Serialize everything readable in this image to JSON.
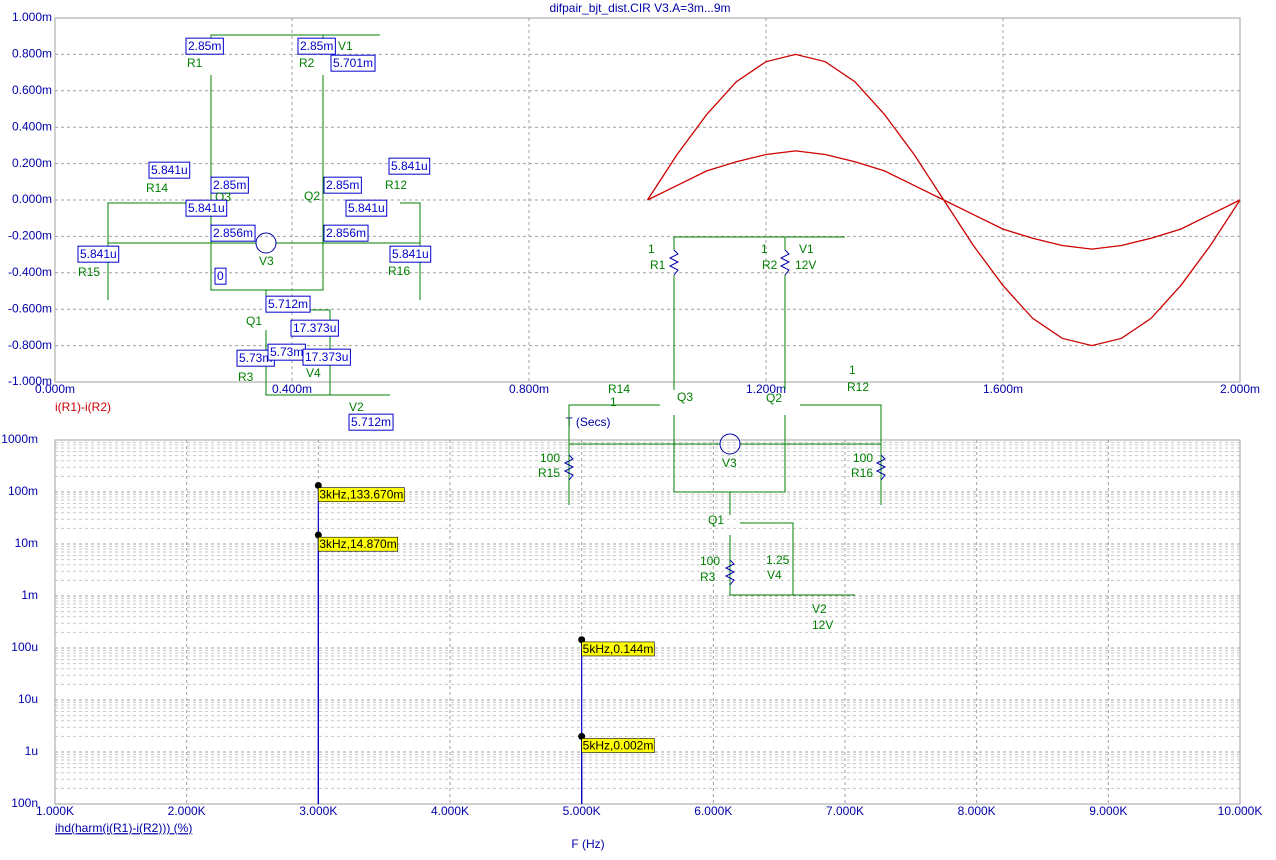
{
  "chart_data": [
    {
      "type": "line",
      "title": "difpair_bjt_dist.CIR V3.A=3m...9m",
      "xlabel": "T (Secs)",
      "ylabel": "i(R1)-i(R2)",
      "x": [
        1.0,
        1.05,
        1.1,
        1.15,
        1.2,
        1.25,
        1.3,
        1.35,
        1.4,
        1.45,
        1.5,
        1.55,
        1.6,
        1.65,
        1.7,
        1.75,
        1.8,
        1.85,
        1.9,
        1.95,
        2.0
      ],
      "series": [
        {
          "color": "#cc0000",
          "values": [
            0,
            0.25,
            0.47,
            0.65,
            0.76,
            0.8,
            0.76,
            0.65,
            0.47,
            0.25,
            0,
            -0.25,
            -0.47,
            -0.65,
            -0.76,
            -0.8,
            -0.76,
            -0.65,
            -0.47,
            -0.25,
            0
          ]
        },
        {
          "color": "#cc0000",
          "values": [
            0,
            0.08,
            0.16,
            0.21,
            0.25,
            0.27,
            0.25,
            0.21,
            0.16,
            0.08,
            0,
            -0.08,
            -0.16,
            -0.21,
            -0.25,
            -0.27,
            -0.25,
            -0.21,
            -0.16,
            -0.08,
            0
          ]
        }
      ],
      "xlim": [
        0,
        2
      ],
      "ylim": [
        -1,
        1
      ],
      "xticks": [
        {
          "value": 0,
          "label": "0.000m"
        },
        {
          "value": 0.4,
          "label": "0.400m"
        },
        {
          "value": 0.8,
          "label": "0.800m"
        },
        {
          "value": 1.2,
          "label": "1.200m"
        },
        {
          "value": 1.6,
          "label": "1.600m"
        },
        {
          "value": 2,
          "label": "2.000m"
        }
      ],
      "yticks": [
        {
          "value": -1,
          "label": "-1.000m"
        },
        {
          "value": -0.8,
          "label": "-0.800m"
        },
        {
          "value": -0.6,
          "label": "-0.600m"
        },
        {
          "value": -0.4,
          "label": "-0.400m"
        },
        {
          "value": -0.2,
          "label": "-0.200m"
        },
        {
          "value": 0,
          "label": "0.000m"
        },
        {
          "value": 0.2,
          "label": "0.200m"
        },
        {
          "value": 0.4,
          "label": "0.400m"
        },
        {
          "value": 0.6,
          "label": "0.600m"
        },
        {
          "value": 0.8,
          "label": "0.800m"
        },
        {
          "value": 1,
          "label": "1.000m"
        }
      ],
      "grid": true
    },
    {
      "type": "stem",
      "xlabel": "F (Hz)",
      "ylabel": "ihd(harm(i(R1)-i(R2))) (%)",
      "x": [
        3000,
        5000
      ],
      "series": [
        {
          "color": "#0000cc",
          "values": [
            0.13367,
            0.000144
          ],
          "value_labels": [
            "3kHz,133.670m",
            "5kHz,0.144m"
          ]
        },
        {
          "color": "#0000cc",
          "values": [
            0.01487,
            2e-06
          ],
          "value_labels": [
            "3kHz,14.870m",
            "5kHz,0.002m"
          ]
        }
      ],
      "xlim": [
        1000,
        10000
      ],
      "ylim": [
        1e-07,
        1
      ],
      "log_y": true,
      "xticks": [
        {
          "value": 1000,
          "label": "1.000K"
        },
        {
          "value": 2000,
          "label": "2.000K"
        },
        {
          "value": 3000,
          "label": "3.000K"
        },
        {
          "value": 4000,
          "label": "4.000K"
        },
        {
          "value": 5000,
          "label": "5.000K"
        },
        {
          "value": 6000,
          "label": "6.000K"
        },
        {
          "value": 7000,
          "label": "7.000K"
        },
        {
          "value": 8000,
          "label": "8.000K"
        },
        {
          "value": 9000,
          "label": "9.000K"
        },
        {
          "value": 10000,
          "label": "10.000K"
        }
      ],
      "yticks": [
        {
          "value": 1e-07,
          "label": "100n"
        },
        {
          "value": 1e-06,
          "label": "1u"
        },
        {
          "value": 1e-05,
          "label": "10u"
        },
        {
          "value": 0.0001,
          "label": "100u"
        },
        {
          "value": 0.001,
          "label": "1m"
        },
        {
          "value": 0.01,
          "label": "10m"
        },
        {
          "value": 0.1,
          "label": "100m"
        },
        {
          "value": 1,
          "label": "1000m"
        }
      ],
      "grid": true
    }
  ],
  "schematic": {
    "top": [
      {
        "text": "2.85m",
        "boxed": true
      },
      {
        "text": "R1"
      },
      {
        "text": "2.85m",
        "boxed": true
      },
      {
        "text": "V1"
      },
      {
        "text": "R2"
      },
      {
        "text": "5.701m",
        "boxed": true
      },
      {
        "text": "5.841u",
        "boxed": true
      },
      {
        "text": "R14"
      },
      {
        "text": "2.85m",
        "boxed": true
      },
      {
        "text": "Q3"
      },
      {
        "text": "5.841u",
        "boxed": true
      },
      {
        "text": "2.85m",
        "boxed": true
      },
      {
        "text": "Q2"
      },
      {
        "text": "5.841u",
        "boxed": true
      },
      {
        "text": "R12"
      },
      {
        "text": "5.841u",
        "boxed": true
      },
      {
        "text": "2.856m",
        "boxed": true
      },
      {
        "text": "2.856m",
        "boxed": true
      },
      {
        "text": "V3"
      },
      {
        "text": "5.841u",
        "boxed": true
      },
      {
        "text": "R15"
      },
      {
        "text": "5.841u",
        "boxed": true
      },
      {
        "text": "R16"
      },
      {
        "text": "0",
        "boxed": true
      },
      {
        "text": "5.712m",
        "boxed": true
      },
      {
        "text": "Q1"
      },
      {
        "text": "17.373u",
        "boxed": true
      },
      {
        "text": "5.73m",
        "boxed": true
      },
      {
        "text": "5.73m",
        "boxed": true
      },
      {
        "text": "17.373u",
        "boxed": true
      },
      {
        "text": "V4"
      },
      {
        "text": "R3"
      },
      {
        "text": "V2"
      },
      {
        "text": "5.712m",
        "boxed": true
      }
    ],
    "bottom": [
      {
        "text": "1"
      },
      {
        "text": "R1"
      },
      {
        "text": "1"
      },
      {
        "text": "V1"
      },
      {
        "text": "R2"
      },
      {
        "text": "12V"
      },
      {
        "text": "1"
      },
      {
        "text": "R14"
      },
      {
        "text": "Q3"
      },
      {
        "text": "Q2"
      },
      {
        "text": "1"
      },
      {
        "text": "R12"
      },
      {
        "text": "100"
      },
      {
        "text": "R15"
      },
      {
        "text": "V3"
      },
      {
        "text": "100"
      },
      {
        "text": "R16"
      },
      {
        "text": "Q1"
      },
      {
        "text": "100"
      },
      {
        "text": "R3"
      },
      {
        "text": "1.25"
      },
      {
        "text": "V4"
      },
      {
        "text": "V2"
      },
      {
        "text": "12V"
      }
    ]
  }
}
